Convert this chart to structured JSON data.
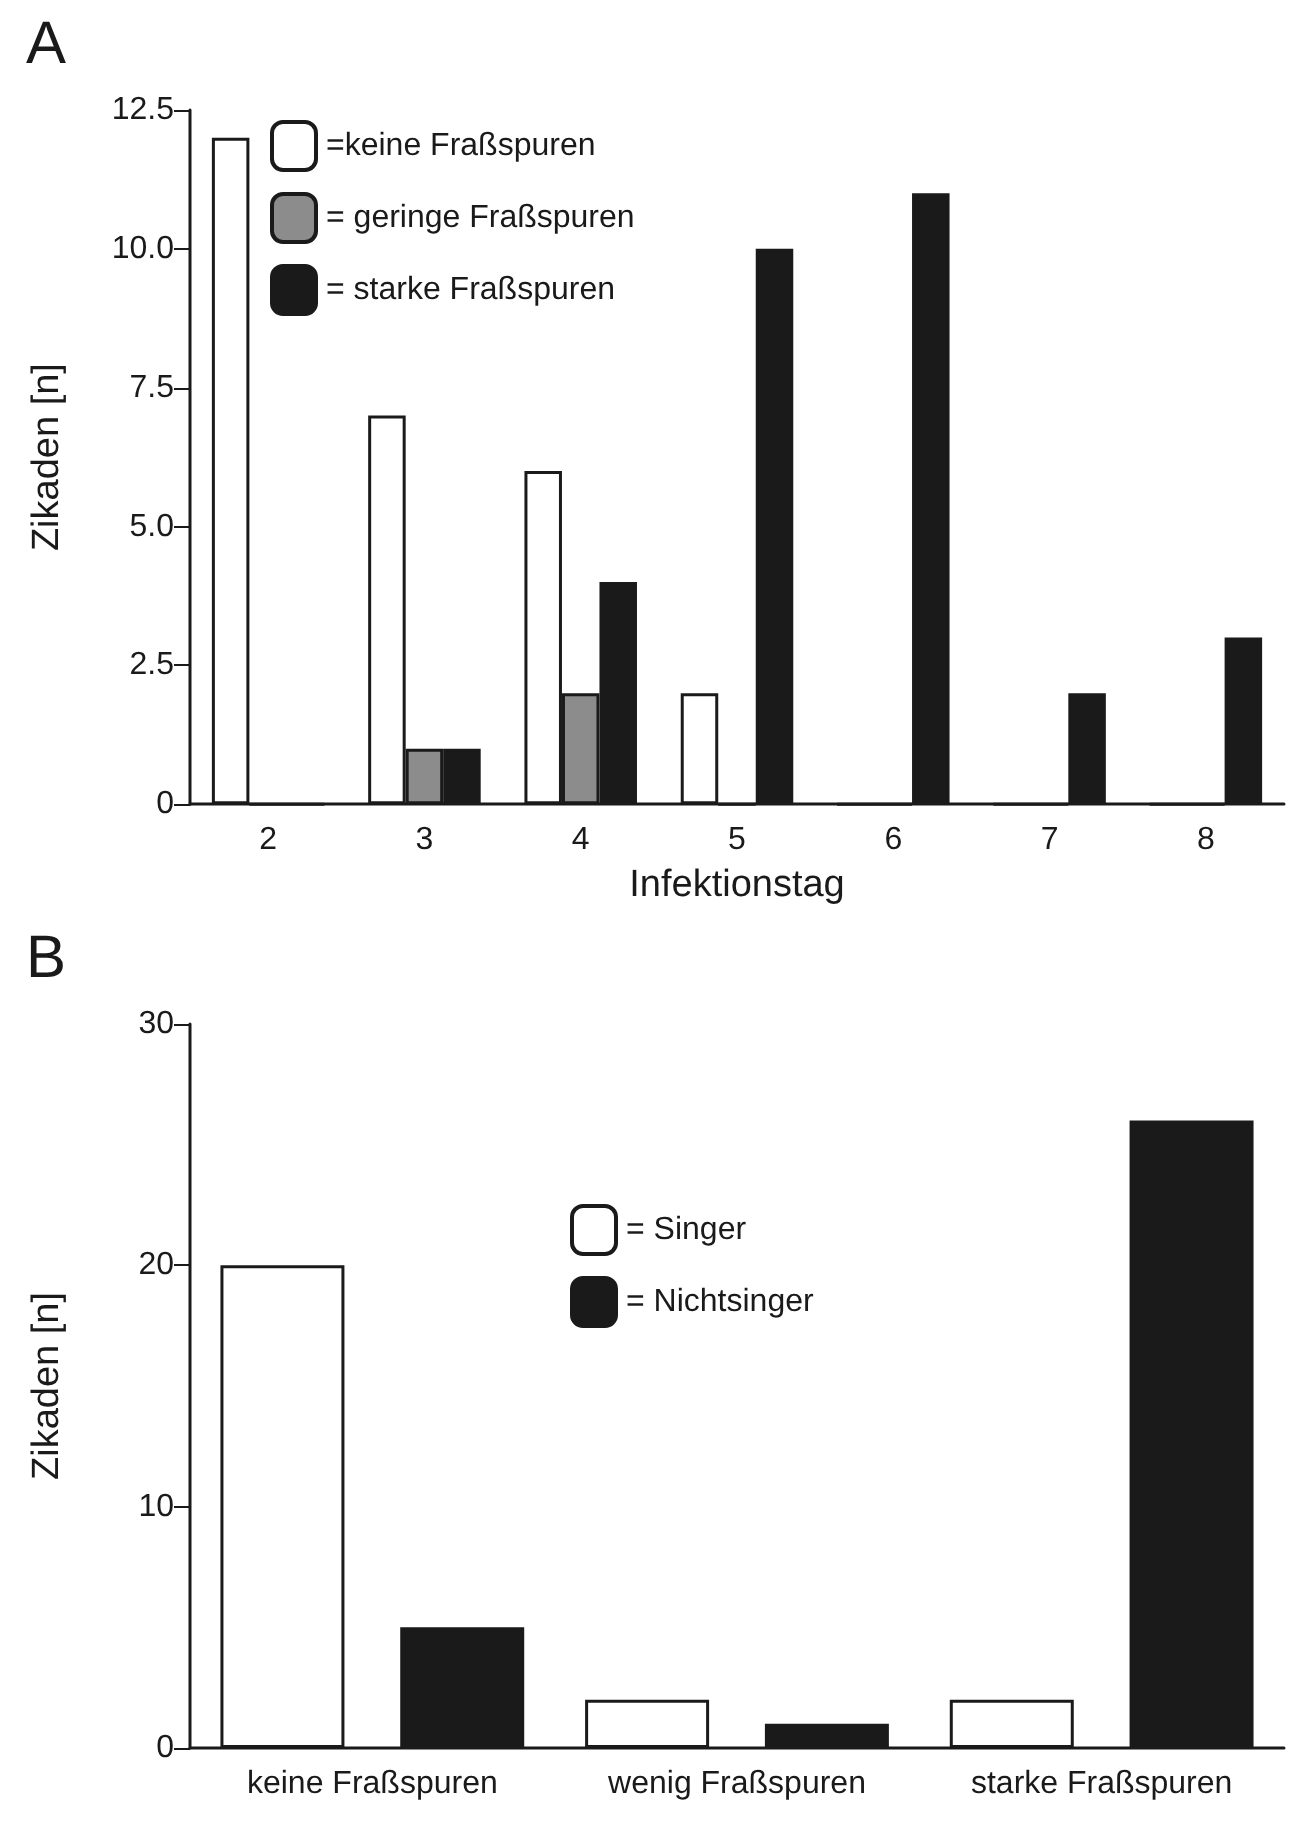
{
  "chart_data": [
    {
      "type": "bar",
      "title": "A",
      "xlabel": "Infektionstag",
      "ylabel": "Zikaden [n]",
      "categories": [
        "2",
        "3",
        "4",
        "5",
        "6",
        "7",
        "8"
      ],
      "series": [
        {
          "name": "=keine Fraßspuren",
          "color": "#ffffff",
          "values": [
            12,
            7,
            6,
            2,
            0,
            0,
            0
          ]
        },
        {
          "name": "= geringe Fraßspuren",
          "color": "#8c8c8c",
          "values": [
            0,
            1,
            2,
            0,
            0,
            0,
            0
          ]
        },
        {
          "name": "= starke Fraßspuren",
          "color": "#1a1a1a",
          "values": [
            0,
            1,
            4,
            10,
            11,
            2,
            3
          ]
        }
      ],
      "ylim": [
        0,
        12.5
      ],
      "yticks": [
        0,
        2.5,
        {
          "value": 5,
          "label": "5.0"
        },
        7.5,
        {
          "value": 10,
          "label": "10.0"
        },
        12.5
      ],
      "grid": false,
      "legend": "top left"
    },
    {
      "type": "bar",
      "title": "B",
      "ylabel": "Zikaden [n]",
      "categories": [
        "keine Fraßspuren",
        "wenig Fraßspuren",
        "starke Fraßspuren"
      ],
      "series": [
        {
          "name": "= Singer",
          "color": "#ffffff",
          "values": [
            20,
            2,
            2
          ]
        },
        {
          "name": "= Nichtsinger",
          "color": "#1a1a1a",
          "values": [
            5,
            1,
            26
          ]
        }
      ],
      "ylim": [
        0,
        30
      ],
      "yticks": [
        0,
        10,
        20,
        30
      ],
      "grid": false,
      "legend": "top"
    }
  ]
}
